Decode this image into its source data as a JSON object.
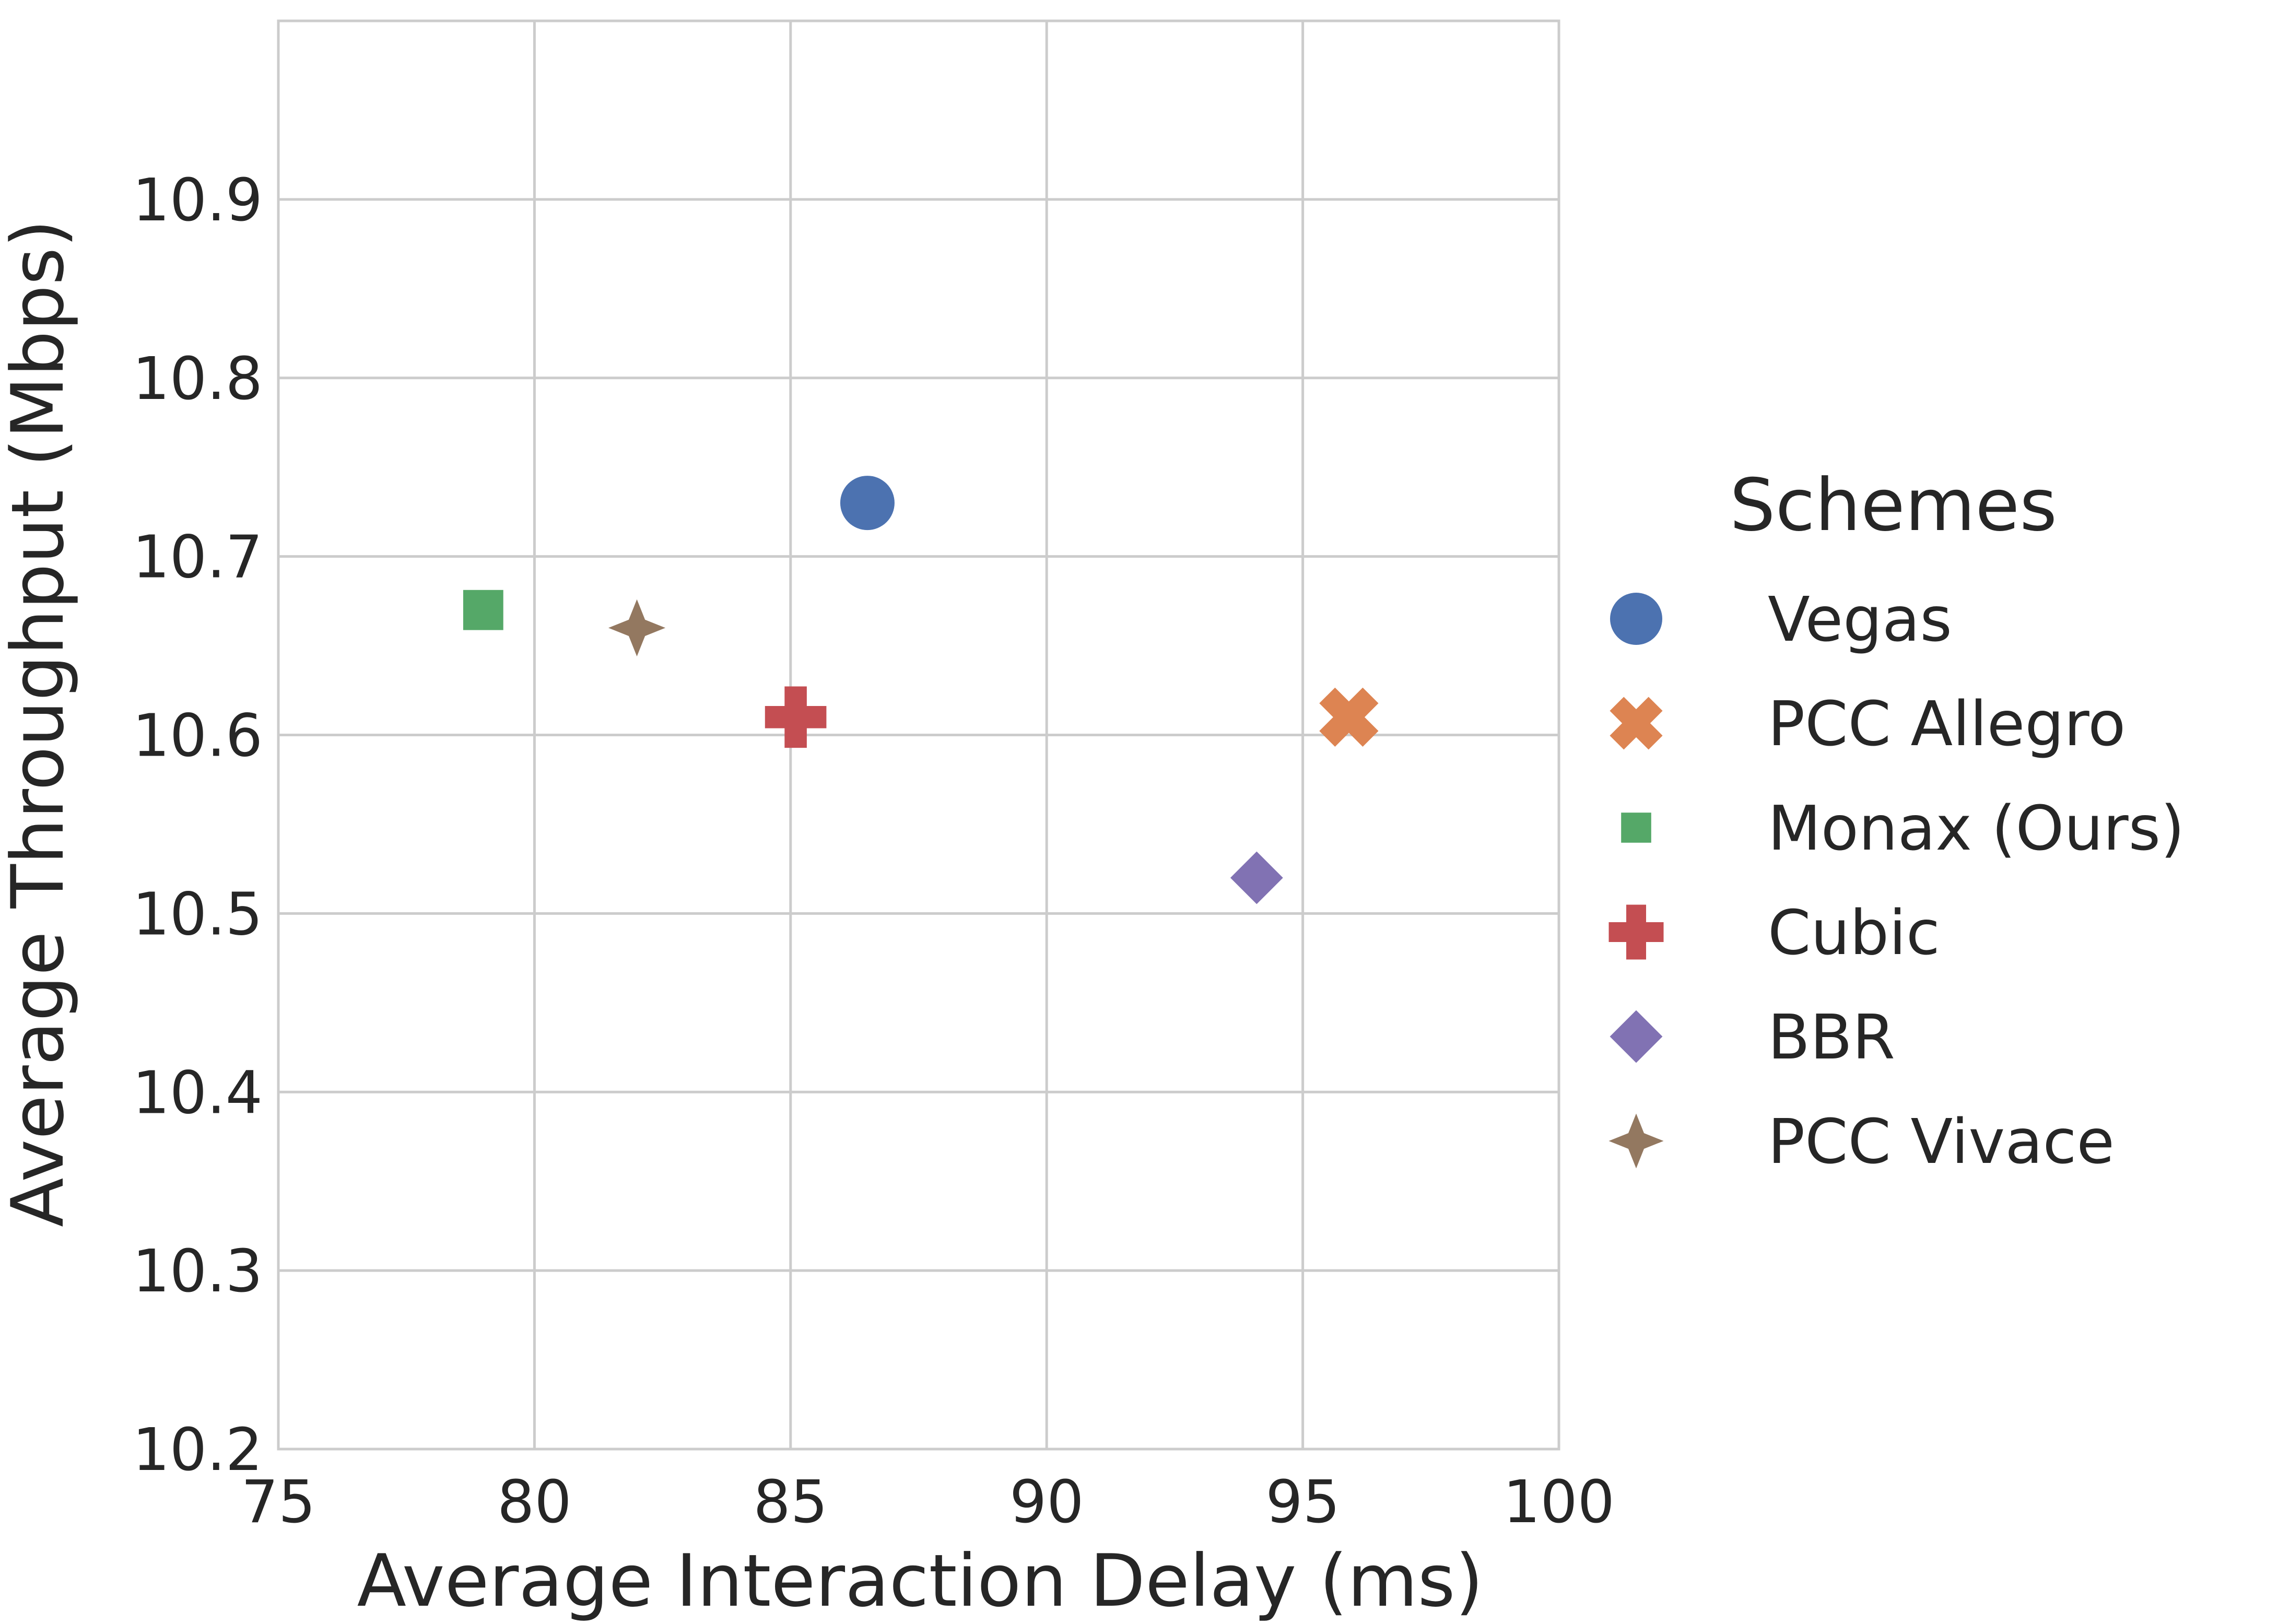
{
  "chart_data": {
    "type": "scatter",
    "xlabel": "Average Interaction Delay (ms)",
    "ylabel": "Average Throughput (Mbps)",
    "xlim": [
      75,
      100
    ],
    "ylim": [
      10.2,
      11.0
    ],
    "xticks": [
      75,
      80,
      85,
      90,
      95,
      100
    ],
    "yticks": [
      10.2,
      10.3,
      10.4,
      10.5,
      10.6,
      10.7,
      10.8,
      10.9
    ],
    "xtick_labels": [
      "75",
      "80",
      "85",
      "90",
      "95",
      "100"
    ],
    "ytick_labels": [
      "10.2",
      "10.3",
      "10.4",
      "10.5",
      "10.6",
      "10.7",
      "10.8",
      "10.9"
    ],
    "grid": true,
    "legend": {
      "title": "Schemes",
      "placement": "outside-right"
    },
    "series": [
      {
        "name": "Vegas",
        "marker": "circle",
        "color": "#4c72b0",
        "x": 86.5,
        "y": 10.73
      },
      {
        "name": "PCC Allegro",
        "marker": "x",
        "color": "#dd8452",
        "x": 95.9,
        "y": 10.61
      },
      {
        "name": "Monax (Ours)",
        "marker": "square",
        "color": "#55a868",
        "x": 79.0,
        "y": 10.67
      },
      {
        "name": "Cubic",
        "marker": "plus",
        "color": "#c44e52",
        "x": 85.1,
        "y": 10.61
      },
      {
        "name": "BBR",
        "marker": "diamond",
        "color": "#8172b3",
        "x": 94.1,
        "y": 10.52
      },
      {
        "name": "PCC Vivace",
        "marker": "star4",
        "color": "#937860",
        "x": 82.0,
        "y": 10.66
      }
    ]
  }
}
